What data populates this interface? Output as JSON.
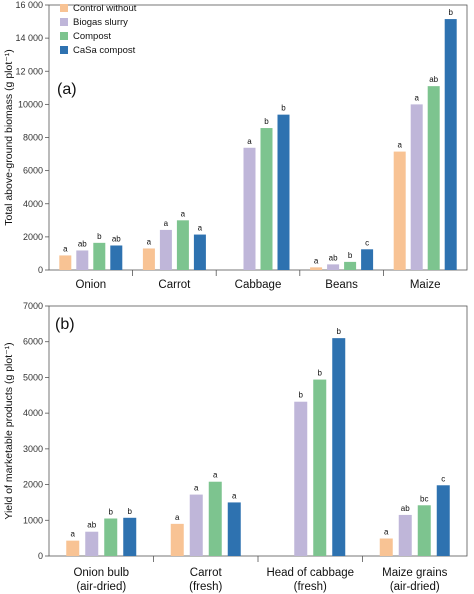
{
  "chart_data": [
    {
      "type": "bar",
      "panel_label": "(a)",
      "ylabel": "Total above-ground biomass (g plot⁻¹)",
      "ylim": [
        0,
        16000
      ],
      "yticks": [
        0,
        2000,
        4000,
        6000,
        8000,
        10000,
        12000,
        14000,
        16000
      ],
      "ytick_labels": [
        "0",
        "2000",
        "4000",
        "6000",
        "8000",
        "10000",
        "12 000",
        "14 000",
        "16 000"
      ],
      "legend_position": "top-left",
      "categories": [
        [
          "Onion"
        ],
        [
          "Carrot"
        ],
        [
          "Cabbage"
        ],
        [
          "Beans"
        ],
        [
          "Maize"
        ]
      ],
      "series": [
        {
          "name": "Control without",
          "color": "#f8c394",
          "values": [
            880,
            1300,
            null,
            160,
            7150
          ],
          "labels": [
            "a",
            "a",
            "",
            "a",
            "a"
          ]
        },
        {
          "name": "Biogas slurry",
          "color": "#bfb6d9",
          "values": [
            1180,
            2420,
            7380,
            340,
            10000
          ],
          "labels": [
            "ab",
            "a",
            "a",
            "ab",
            "a"
          ]
        },
        {
          "name": "Compost",
          "color": "#7dc48f",
          "values": [
            1640,
            3000,
            8570,
            490,
            11100
          ],
          "labels": [
            "b",
            "a",
            "b",
            "b",
            "ab"
          ]
        },
        {
          "name": "CaSa compost",
          "color": "#2e72b0",
          "values": [
            1480,
            2140,
            9380,
            1250,
            15150
          ],
          "labels": [
            "ab",
            "a",
            "b",
            "c",
            "b"
          ]
        }
      ]
    },
    {
      "type": "bar",
      "panel_label": "(b)",
      "ylabel": "Yield of marketable products (g plot⁻¹)",
      "ylim": [
        0,
        7000
      ],
      "yticks": [
        0,
        1000,
        2000,
        3000,
        4000,
        5000,
        6000,
        7000
      ],
      "ytick_labels": [
        "0",
        "1000",
        "2000",
        "3000",
        "4000",
        "5000",
        "6000",
        "7000"
      ],
      "categories": [
        [
          "Onion bulb",
          "(air-dried)"
        ],
        [
          "Carrot",
          "(fresh)"
        ],
        [
          "Head of cabbage",
          "(fresh)"
        ],
        [
          "Maize grains",
          "(air-dried)"
        ]
      ],
      "series": [
        {
          "name": "Control without",
          "color": "#f8c394",
          "values": [
            430,
            900,
            null,
            490
          ],
          "labels": [
            "a",
            "a",
            "",
            "a"
          ]
        },
        {
          "name": "Biogas slurry",
          "color": "#bfb6d9",
          "values": [
            680,
            1720,
            4320,
            1150
          ],
          "labels": [
            "ab",
            "a",
            "b",
            "ab"
          ]
        },
        {
          "name": "Compost",
          "color": "#7dc48f",
          "values": [
            1050,
            2080,
            4940,
            1420
          ],
          "labels": [
            "b",
            "a",
            "b",
            "bc"
          ]
        },
        {
          "name": "CaSa compost",
          "color": "#2e72b0",
          "values": [
            1070,
            1500,
            6100,
            1980
          ],
          "labels": [
            "b",
            "a",
            "b",
            "c"
          ]
        }
      ]
    }
  ]
}
